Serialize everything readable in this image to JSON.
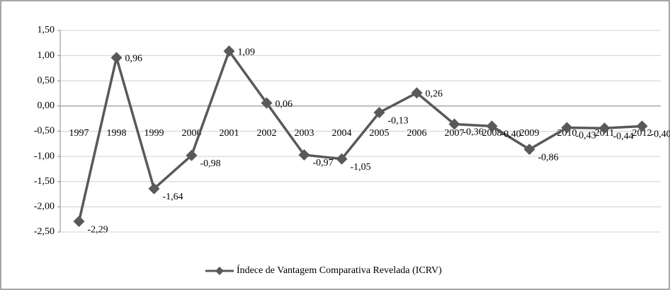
{
  "chart_data": {
    "type": "line",
    "categories": [
      "1997",
      "1998",
      "1999",
      "2000",
      "2001",
      "2002",
      "2003",
      "2004",
      "2005",
      "2006",
      "2007",
      "2008",
      "2009",
      "2010",
      "2011",
      "2012"
    ],
    "series": [
      {
        "name": "Índece de Vantagem Comparativa Revelada (ICRV)",
        "color": "#595959",
        "values": [
          -2.29,
          0.96,
          -1.64,
          -0.98,
          1.09,
          0.06,
          -0.97,
          -1.05,
          -0.13,
          0.26,
          -0.36,
          -0.4,
          -0.86,
          -0.43,
          -0.44,
          -0.4
        ],
        "value_labels": [
          "-2,29",
          "0,96",
          "-1,64",
          "-0,98",
          "1,09",
          "0,06",
          "-0,97",
          "-1,05",
          "-0,13",
          "0,26",
          "-0,36",
          "-0,40",
          "-0,86",
          "-0,43",
          "-0,44",
          "-0,40"
        ]
      }
    ],
    "ylim": [
      -2.5,
      1.5
    ],
    "yticks": [
      {
        "value": 1.5,
        "label": "1,50"
      },
      {
        "value": 1.0,
        "label": "1,00"
      },
      {
        "value": 0.5,
        "label": "0,50"
      },
      {
        "value": 0.0,
        "label": "0,00"
      },
      {
        "value": -0.5,
        "label": "-0,50"
      },
      {
        "value": -1.0,
        "label": "-1,00"
      },
      {
        "value": -1.5,
        "label": "-1,50"
      },
      {
        "value": -2.0,
        "label": "-2,00"
      },
      {
        "value": -2.5,
        "label": "-2,50"
      }
    ],
    "grid": true,
    "legend": "bottom"
  }
}
